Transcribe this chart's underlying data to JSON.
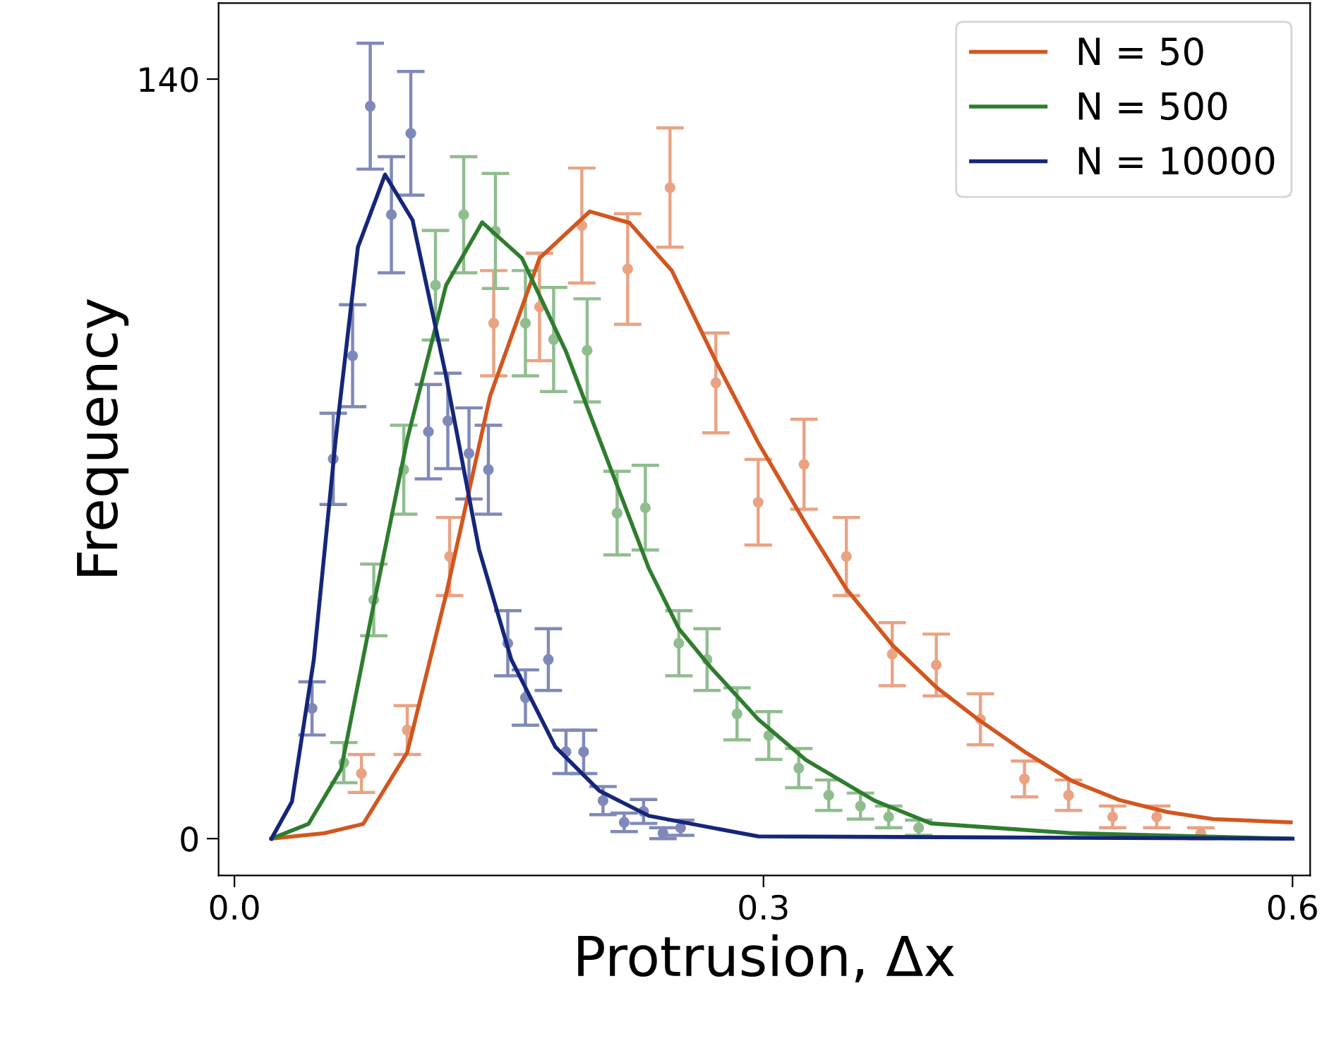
{
  "chart_data": {
    "type": "line",
    "xlabel": "Protrusion, Δx",
    "ylabel": "Frequency",
    "xlim": [
      -0.009,
      0.61
    ],
    "ylim": [
      -6.8,
      154
    ],
    "xticks": [
      {
        "value": 0.0,
        "label": "0.0"
      },
      0.3,
      0.6
    ],
    "yticks": [
      0,
      140
    ],
    "legend": "top right",
    "series": [
      {
        "type": "scatter",
        "marker": "circle",
        "color": "#e9a383",
        "x": [
          0.072,
          0.098,
          0.122,
          0.147,
          0.173,
          0.197,
          0.223,
          0.247,
          0.273,
          0.297,
          0.323,
          0.347,
          0.373,
          0.398,
          0.423,
          0.448,
          0.473,
          0.498,
          0.523,
          0.548
        ],
        "values": [
          12,
          20,
          52,
          95,
          98,
          113,
          105,
          120,
          84,
          62,
          69,
          52,
          34,
          32,
          22,
          11,
          8,
          4,
          4,
          1
        ],
        "errors": [
          3.5,
          4.5,
          7.2,
          9.7,
          9.9,
          10.6,
          10.2,
          11,
          9.2,
          7.9,
          8.3,
          7.2,
          5.8,
          5.7,
          4.7,
          3.3,
          2.8,
          2,
          2,
          1
        ]
      },
      {
        "type": "scatter",
        "marker": "circle",
        "color": "#90bd8f",
        "x": [
          0.062,
          0.079,
          0.096,
          0.114,
          0.13,
          0.148,
          0.165,
          0.181,
          0.2,
          0.217,
          0.233,
          0.252,
          0.268,
          0.285,
          0.303,
          0.32,
          0.337,
          0.355,
          0.371,
          0.388
        ],
        "values": [
          14,
          44,
          68,
          102,
          115,
          112,
          95,
          92,
          90,
          60,
          61,
          36,
          33,
          23,
          19,
          13,
          8,
          6,
          4,
          2
        ],
        "errors": [
          3.7,
          6.6,
          8.2,
          10.1,
          10.7,
          10.6,
          9.7,
          9.6,
          9.5,
          7.7,
          7.8,
          6,
          5.7,
          4.8,
          4.4,
          3.6,
          2.8,
          2.4,
          2,
          1.4
        ]
      },
      {
        "type": "scatter",
        "marker": "circle",
        "color": "#7f89b9",
        "x": [
          0.044,
          0.056,
          0.067,
          0.077,
          0.089,
          0.1,
          0.11,
          0.121,
          0.133,
          0.144,
          0.155,
          0.165,
          0.178,
          0.188,
          0.198,
          0.209,
          0.221,
          0.232,
          0.243,
          0.253
        ],
        "values": [
          24,
          70,
          89,
          135,
          115,
          130,
          75,
          77,
          71,
          68,
          36,
          26,
          33,
          16,
          16,
          7,
          3,
          5,
          1,
          2
        ],
        "errors": [
          4.9,
          8.4,
          9.4,
          11.6,
          10.7,
          11.4,
          8.7,
          8.8,
          8.4,
          8.2,
          6,
          5.1,
          5.7,
          4,
          4,
          2.6,
          1.7,
          2.2,
          1,
          1.4
        ]
      },
      {
        "name": "N = 50",
        "color": "#d2561f",
        "x": [
          0.021,
          0.051,
          0.073,
          0.098,
          0.12,
          0.145,
          0.173,
          0.2015,
          0.224,
          0.248,
          0.273,
          0.297,
          0.324,
          0.347,
          0.373,
          0.398,
          0.422,
          0.449,
          0.475,
          0.502,
          0.529,
          0.555,
          0.599
        ],
        "values": [
          0,
          1,
          2.7,
          15.9,
          45,
          81.6,
          107,
          115.6,
          113.5,
          104.7,
          88,
          73,
          58,
          46,
          35.7,
          27.9,
          21.9,
          15.8,
          10.6,
          7.1,
          4.9,
          3.6,
          3.0
        ]
      },
      {
        "name": "N = 500",
        "color": "#2e7d2e",
        "x": [
          0.021,
          0.042,
          0.0605,
          0.079,
          0.098,
          0.12,
          0.1405,
          0.163,
          0.188,
          0.213,
          0.235,
          0.252,
          0.27,
          0.297,
          0.324,
          0.363,
          0.395,
          0.475,
          0.599
        ],
        "values": [
          0,
          2.7,
          12.8,
          43.2,
          73.6,
          102,
          113.6,
          107,
          89.8,
          68.5,
          49.8,
          38.7,
          31.6,
          22,
          14.5,
          7,
          2.8,
          1,
          0
        ]
      },
      {
        "name": "N = 10000",
        "color": "#15267a",
        "x": [
          0.021,
          0.0326,
          0.045,
          0.0574,
          0.07,
          0.0854,
          0.101,
          0.1197,
          0.1387,
          0.157,
          0.182,
          0.207,
          0.235,
          0.297,
          0.6
        ],
        "values": [
          0,
          6.8,
          33,
          73.6,
          109,
          122.4,
          114,
          85.7,
          53.3,
          33,
          16.9,
          8.8,
          4.2,
          0.4,
          0
        ]
      }
    ]
  }
}
